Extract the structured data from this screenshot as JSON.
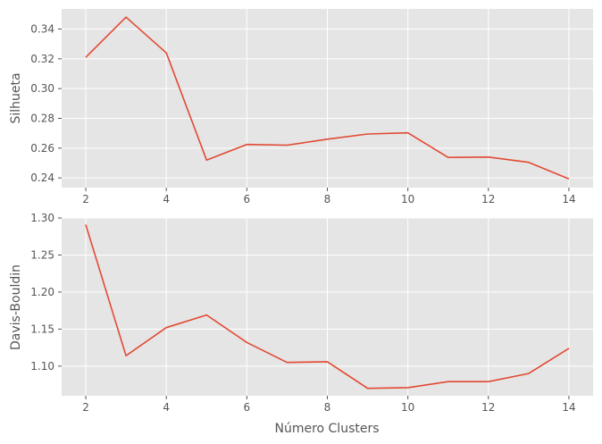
{
  "chart_data": [
    {
      "type": "line",
      "xlabel": "",
      "ylabel": "Silhueta",
      "x": [
        2,
        3,
        4,
        5,
        6,
        7,
        8,
        9,
        10,
        11,
        12,
        13,
        14
      ],
      "series": [
        {
          "name": "Silhueta",
          "values": [
            0.321,
            0.348,
            0.324,
            0.252,
            0.2625,
            0.262,
            0.266,
            0.2695,
            0.2703,
            0.2538,
            0.254,
            0.2505,
            0.2393
          ]
        }
      ],
      "xlim": [
        1.4,
        14.6
      ],
      "ylim": [
        0.2335,
        0.3535
      ],
      "xticks": [
        2,
        4,
        6,
        8,
        10,
        12,
        14
      ],
      "xtick_labels": [
        "2",
        "4",
        "6",
        "8",
        "10",
        "12",
        "14"
      ],
      "yticks": [
        0.24,
        0.26,
        0.28,
        0.3,
        0.32,
        0.34
      ],
      "ytick_labels": [
        "0.24",
        "0.26",
        "0.28",
        "0.30",
        "0.32",
        "0.34"
      ],
      "grid": true,
      "colors": {
        "background": "#e5e5e5",
        "grid": "#ffffff",
        "line": "#e24a33",
        "text": "#555555"
      }
    },
    {
      "type": "line",
      "xlabel": "Número Clusters",
      "ylabel": "Davis-Bouldin",
      "x": [
        2,
        3,
        4,
        5,
        6,
        7,
        8,
        9,
        10,
        11,
        12,
        13,
        14
      ],
      "series": [
        {
          "name": "Davis-Bouldin",
          "values": [
            1.291,
            1.114,
            1.152,
            1.169,
            1.132,
            1.105,
            1.106,
            1.07,
            1.071,
            1.079,
            1.079,
            1.09,
            1.124
          ]
        }
      ],
      "xlim": [
        1.4,
        14.6
      ],
      "ylim": [
        1.06,
        1.3
      ],
      "xticks": [
        2,
        4,
        6,
        8,
        10,
        12,
        14
      ],
      "xtick_labels": [
        "2",
        "4",
        "6",
        "8",
        "10",
        "12",
        "14"
      ],
      "yticks": [
        1.1,
        1.15,
        1.2,
        1.25,
        1.3
      ],
      "ytick_labels": [
        "1.10",
        "1.15",
        "1.20",
        "1.25",
        "1.30"
      ],
      "grid": true,
      "colors": {
        "background": "#e5e5e5",
        "grid": "#ffffff",
        "line": "#e24a33",
        "text": "#555555"
      }
    }
  ]
}
